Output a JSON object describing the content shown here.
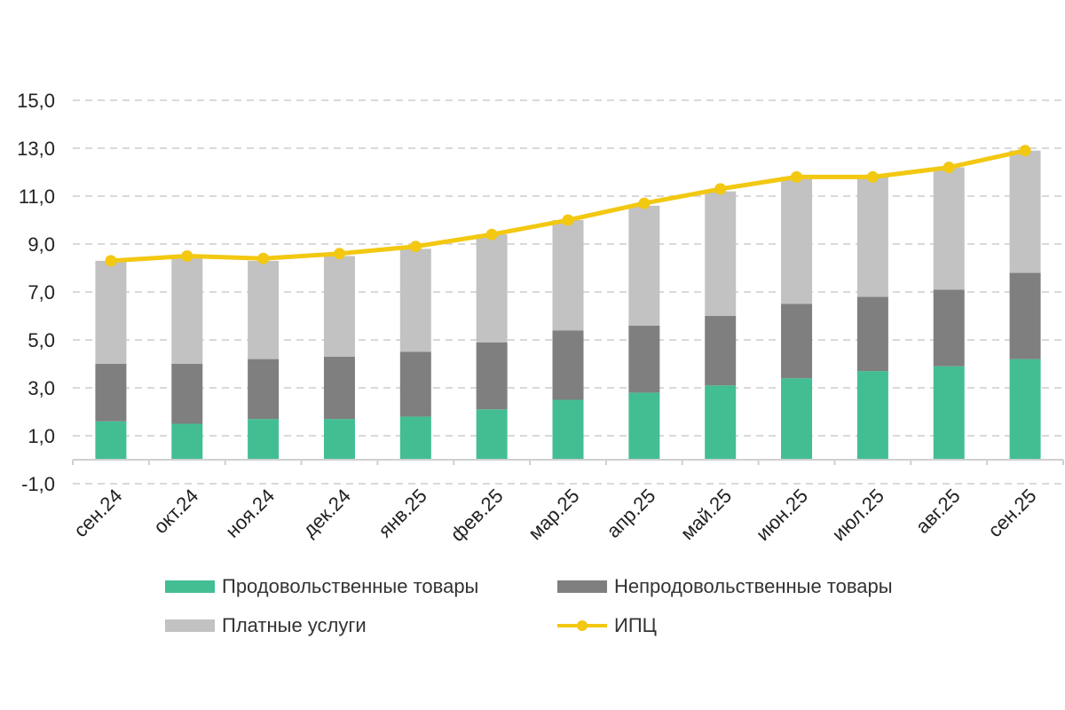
{
  "chart_data": {
    "type": "bar",
    "stacked": true,
    "categories": [
      "сен.24",
      "окт.24",
      "ноя.24",
      "дек.24",
      "янв.25",
      "фев.25",
      "мар.25",
      "апр.25",
      "май.25",
      "июн.25",
      "июл.25",
      "авг.25",
      "сен.25"
    ],
    "ylim": [
      -1,
      15
    ],
    "yticks": [
      "15,0",
      "13,0",
      "11,0",
      "9,0",
      "7,0",
      "5,0",
      "3,0",
      "1,0",
      "-1,0"
    ],
    "ytick_values": [
      15,
      13,
      11,
      9,
      7,
      5,
      3,
      1,
      -1
    ],
    "grid": true,
    "legend_position": "bottom",
    "series": [
      {
        "name": "Продовольственные товары",
        "kind": "bar",
        "color": "#43BE93",
        "values": [
          1.6,
          1.5,
          1.7,
          1.7,
          1.8,
          2.1,
          2.5,
          2.8,
          3.1,
          3.4,
          3.7,
          3.9,
          4.2
        ]
      },
      {
        "name": "Непродовольственные товары",
        "kind": "bar",
        "color": "#7F7F7F",
        "values": [
          2.4,
          2.5,
          2.5,
          2.6,
          2.7,
          2.8,
          2.9,
          2.8,
          2.9,
          3.1,
          3.1,
          3.2,
          3.6
        ]
      },
      {
        "name": "Платные услуги",
        "kind": "bar",
        "color": "#C2C2C2",
        "values": [
          4.3,
          4.5,
          4.1,
          4.2,
          4.3,
          4.5,
          4.6,
          5.0,
          5.2,
          5.3,
          5.0,
          5.1,
          5.1
        ]
      },
      {
        "name": "ИПЦ",
        "kind": "line",
        "color": "#F2C811",
        "values": [
          8.3,
          8.5,
          8.4,
          8.6,
          8.9,
          9.4,
          10.0,
          10.7,
          11.3,
          11.8,
          11.8,
          12.2,
          12.9
        ]
      }
    ]
  },
  "legend": {
    "food": "Продовольственные товары",
    "nonfood": "Непродовольственные товары",
    "services": "Платные услуги",
    "cpi": "ИПЦ"
  },
  "colors": {
    "food": "#43BE93",
    "nonfood": "#7F7F7F",
    "services": "#C2C2C2",
    "cpi": "#F2C811",
    "grid": "#D9D9D9"
  }
}
